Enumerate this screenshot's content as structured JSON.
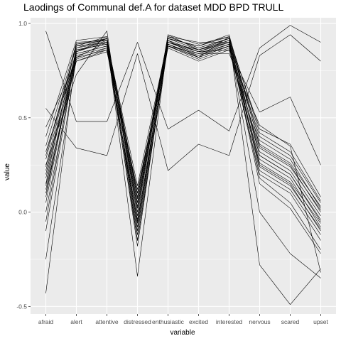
{
  "chart_data": {
    "type": "line",
    "title": "Laodings of Communal def.A for dataset MDD BPD TRULL",
    "xlabel": "variable",
    "ylabel": "value",
    "categories": [
      "afraid",
      "alert",
      "attentive",
      "distressed",
      "enthusiastic",
      "excited",
      "interested",
      "nervous",
      "scared",
      "upset"
    ],
    "y_ticks": [
      {
        "value": -0.5,
        "label": "-0.5"
      },
      {
        "value": 0.0,
        "label": "0.0"
      },
      {
        "value": 0.5,
        "label": "0.5"
      },
      {
        "value": 1.0,
        "label": "1.0"
      }
    ],
    "ylim": [
      -0.54,
      1.03
    ],
    "grid": true,
    "background_color": "#ebebeb",
    "grid_major_color": "#ffffff",
    "line_color": "#000000",
    "series": [
      {
        "values": [
          0.96,
          0.48,
          0.48,
          0.9,
          0.44,
          0.54,
          0.43,
          0.87,
          0.99,
          0.9
        ]
      },
      {
        "values": [
          0.55,
          0.34,
          0.3,
          0.84,
          0.22,
          0.36,
          0.3,
          0.83,
          0.94,
          0.8
        ]
      },
      {
        "values": [
          0.25,
          0.73,
          0.96,
          -0.15,
          0.9,
          0.85,
          0.86,
          0.53,
          0.61,
          0.25
        ]
      },
      {
        "values": [
          0.45,
          0.8,
          0.86,
          0.1,
          0.88,
          0.84,
          0.84,
          0.46,
          0.35,
          -0.32
        ]
      },
      {
        "values": [
          -0.43,
          0.85,
          0.92,
          0.05,
          0.93,
          0.9,
          0.9,
          0.0,
          -0.22,
          -0.35
        ]
      },
      {
        "values": [
          -0.25,
          0.82,
          0.9,
          -0.34,
          0.91,
          0.82,
          0.93,
          -0.28,
          -0.49,
          -0.3
        ]
      },
      {
        "values": [
          0.15,
          0.9,
          0.91,
          0.0,
          0.94,
          0.86,
          0.92,
          0.44,
          0.36,
          0.08
        ]
      },
      {
        "values": [
          0.2,
          0.86,
          0.89,
          0.02,
          0.9,
          0.84,
          0.9,
          0.4,
          0.3,
          0.05
        ]
      },
      {
        "values": [
          0.3,
          0.88,
          0.93,
          -0.05,
          0.92,
          0.88,
          0.94,
          0.35,
          0.25,
          0.0
        ]
      },
      {
        "values": [
          0.1,
          0.84,
          0.88,
          0.05,
          0.89,
          0.83,
          0.89,
          0.3,
          0.2,
          -0.05
        ]
      },
      {
        "values": [
          0.05,
          0.87,
          0.9,
          -0.1,
          0.91,
          0.85,
          0.91,
          0.25,
          0.15,
          -0.1
        ]
      },
      {
        "values": [
          0.35,
          0.89,
          0.92,
          0.08,
          0.93,
          0.87,
          0.92,
          0.38,
          0.28,
          0.02
        ]
      },
      {
        "values": [
          0.0,
          0.83,
          0.87,
          -0.15,
          0.88,
          0.82,
          0.88,
          0.2,
          0.1,
          -0.15
        ]
      },
      {
        "values": [
          0.22,
          0.85,
          0.91,
          0.1,
          0.9,
          0.86,
          0.9,
          0.32,
          0.22,
          -0.02
        ]
      },
      {
        "values": [
          0.4,
          0.91,
          0.93,
          -0.02,
          0.94,
          0.89,
          0.93,
          0.42,
          0.32,
          0.06
        ]
      },
      {
        "values": [
          0.12,
          0.8,
          0.85,
          0.12,
          0.87,
          0.8,
          0.86,
          0.28,
          0.18,
          -0.08
        ]
      },
      {
        "values": [
          -0.05,
          0.86,
          0.89,
          -0.08,
          0.9,
          0.84,
          0.89,
          0.18,
          0.05,
          -0.2
        ]
      },
      {
        "values": [
          0.28,
          0.88,
          0.9,
          0.03,
          0.92,
          0.86,
          0.91,
          0.36,
          0.26,
          0.03
        ]
      },
      {
        "values": [
          0.18,
          0.84,
          0.88,
          -0.12,
          0.89,
          0.83,
          0.88,
          0.26,
          0.16,
          -0.06
        ]
      },
      {
        "values": [
          0.08,
          0.87,
          0.92,
          0.07,
          0.93,
          0.87,
          0.92,
          0.22,
          0.12,
          -0.12
        ]
      },
      {
        "values": [
          0.32,
          0.82,
          0.86,
          -0.04,
          0.88,
          0.81,
          0.87,
          0.34,
          0.24,
          0.01
        ]
      },
      {
        "values": [
          -0.1,
          0.85,
          0.9,
          -0.18,
          0.91,
          0.85,
          0.9,
          0.15,
          0.02,
          -0.22
        ]
      },
      {
        "values": [
          0.24,
          0.89,
          0.91,
          0.14,
          0.92,
          0.88,
          0.93,
          0.3,
          0.2,
          -0.04
        ]
      },
      {
        "values": [
          0.14,
          0.81,
          0.87,
          -0.06,
          0.89,
          0.82,
          0.88,
          0.24,
          0.14,
          -0.09
        ]
      }
    ]
  }
}
